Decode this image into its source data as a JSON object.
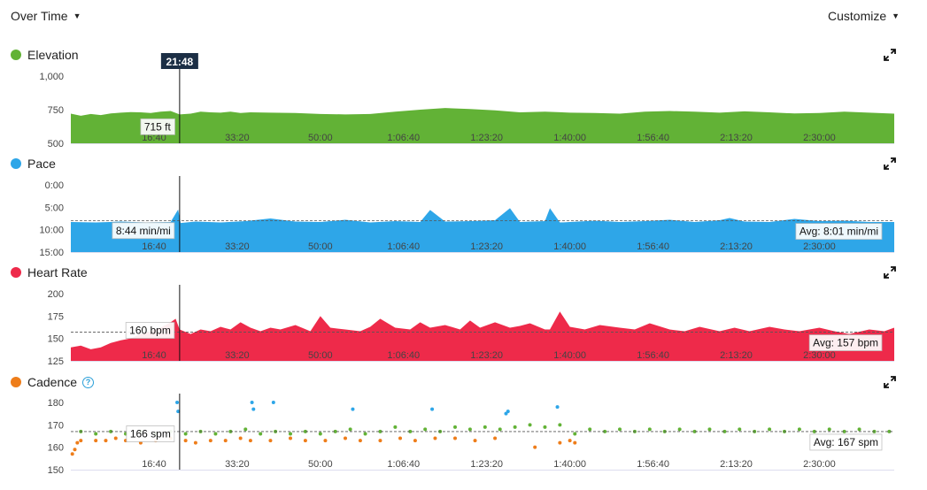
{
  "header": {
    "view_label": "Over Time",
    "customize_label": "Customize"
  },
  "cursor": {
    "time_label": "21:48",
    "time_min": 21.8
  },
  "x_axis": {
    "xlim": [
      0,
      165
    ],
    "ticks": [
      16.67,
      33.33,
      50,
      66.67,
      83.33,
      100,
      116.67,
      133.33,
      150
    ],
    "tick_labels": [
      "16:40",
      "33:20",
      "50:00",
      "1:06:40",
      "1:23:20",
      "1:40:00",
      "1:56:40",
      "2:13:20",
      "2:30:00"
    ]
  },
  "panels": {
    "elevation": {
      "title": "Elevation",
      "dot_color": "#62b236",
      "cursor_label": "715 ft",
      "cursor_value": 715
    },
    "pace": {
      "title": "Pace",
      "dot_color": "#2ea6e8",
      "cursor_label": "8:44 min/mi",
      "avg_label": "Avg: 8:01 min/mi",
      "avg_value": 8.02
    },
    "heart_rate": {
      "title": "Heart Rate",
      "dot_color": "#ee2a4a",
      "cursor_label": "160 bpm",
      "avg_label": "Avg: 157 bpm",
      "avg_value": 157
    },
    "cadence": {
      "title": "Cadence",
      "dot_color": "#ee7d1a",
      "help_glyph": "?",
      "cursor_label": "166 spm",
      "avg_label": "Avg: 167 spm",
      "avg_value": 167
    }
  },
  "chart_data": [
    {
      "type": "area",
      "title": "Elevation",
      "ylabel": "",
      "ylim": [
        500,
        1000
      ],
      "yticks": [
        500,
        750,
        1000
      ],
      "ytick_labels": [
        "500",
        "750",
        "1,000"
      ],
      "color": "#62b236",
      "grid": false,
      "x": [
        0,
        2,
        4,
        6,
        8,
        10,
        12,
        14,
        16,
        18,
        20,
        21.8,
        24,
        26,
        28,
        30,
        32,
        34,
        36,
        40,
        45,
        50,
        55,
        60,
        65,
        70,
        75,
        80,
        85,
        90,
        95,
        100,
        105,
        110,
        115,
        120,
        125,
        130,
        135,
        140,
        145,
        150,
        155,
        160,
        165
      ],
      "y": [
        720,
        705,
        718,
        710,
        722,
        728,
        732,
        730,
        725,
        735,
        740,
        715,
        720,
        735,
        730,
        728,
        735,
        725,
        730,
        728,
        725,
        718,
        715,
        718,
        735,
        750,
        762,
        755,
        745,
        730,
        735,
        728,
        725,
        720,
        735,
        740,
        735,
        728,
        738,
        730,
        722,
        725,
        735,
        728,
        720
      ]
    },
    {
      "type": "area",
      "title": "Pace",
      "ylabel": "",
      "ylim": [
        0,
        15
      ],
      "y_inverted": true,
      "yticks": [
        0,
        5,
        10,
        15
      ],
      "ytick_labels": [
        "0:00",
        "5:00",
        "10:00",
        "15:00"
      ],
      "color": "#2ea6e8",
      "grid": false,
      "avg": 8.02,
      "x": [
        0,
        5,
        10,
        15,
        20,
        21.5,
        22,
        25,
        30,
        35,
        40,
        45,
        50,
        55,
        60,
        65,
        70,
        72,
        75,
        80,
        85,
        88,
        90,
        95,
        96,
        98,
        100,
        105,
        110,
        115,
        120,
        125,
        130,
        132,
        135,
        140,
        145,
        150,
        155,
        160,
        165
      ],
      "y": [
        8.3,
        8.4,
        8.2,
        8.4,
        8.3,
        5.5,
        8.5,
        8.2,
        8.4,
        8.1,
        7.5,
        8.2,
        8.3,
        7.8,
        8.4,
        8.1,
        8.3,
        5.6,
        8.2,
        8.1,
        7.9,
        5.2,
        8.3,
        8.1,
        5.2,
        8.4,
        8.3,
        8.0,
        8.3,
        8.1,
        7.8,
        8.3,
        7.9,
        7.4,
        8.2,
        8.3,
        7.6,
        8.1,
        8.0,
        8.3,
        8.3
      ]
    },
    {
      "type": "area",
      "title": "Heart Rate",
      "ylabel": "",
      "ylim": [
        125,
        200
      ],
      "yticks": [
        125,
        150,
        175,
        200
      ],
      "ytick_labels": [
        "125",
        "150",
        "175",
        "200"
      ],
      "color": "#ee2a4a",
      "grid": false,
      "avg": 157,
      "x": [
        0,
        2,
        4,
        6,
        8,
        10,
        12,
        14,
        16,
        18,
        20,
        21,
        21.8,
        24,
        26,
        28,
        30,
        32,
        34,
        36,
        38,
        40,
        42,
        45,
        48,
        50,
        52,
        55,
        58,
        60,
        62,
        65,
        68,
        70,
        72,
        75,
        78,
        80,
        82,
        85,
        88,
        90,
        92,
        95,
        96,
        98,
        100,
        103,
        106,
        110,
        113,
        116,
        120,
        123,
        126,
        130,
        133,
        136,
        140,
        143,
        146,
        150,
        153,
        156,
        160,
        163,
        165
      ],
      "y": [
        140,
        142,
        138,
        140,
        145,
        148,
        150,
        155,
        158,
        162,
        168,
        172,
        160,
        155,
        160,
        158,
        163,
        160,
        168,
        162,
        158,
        162,
        160,
        165,
        158,
        175,
        162,
        160,
        158,
        163,
        172,
        162,
        160,
        168,
        162,
        165,
        160,
        170,
        162,
        168,
        162,
        164,
        167,
        160,
        160,
        180,
        163,
        160,
        165,
        162,
        160,
        167,
        160,
        158,
        163,
        158,
        162,
        158,
        163,
        160,
        158,
        162,
        158,
        155,
        160,
        158,
        162
      ]
    },
    {
      "type": "scatter",
      "title": "Cadence",
      "ylabel": "",
      "ylim": [
        150,
        180
      ],
      "yticks": [
        150,
        160,
        170,
        180
      ],
      "ytick_labels": [
        "150",
        "160",
        "170",
        "180"
      ],
      "grid": false,
      "avg": 167,
      "series": [
        {
          "name": "",
          "color": "#62b236",
          "x": [
            2,
            5,
            8,
            11,
            14,
            17,
            20,
            23,
            26,
            29,
            32,
            35,
            38,
            41,
            44,
            47,
            50,
            53,
            56,
            59,
            62,
            65,
            68,
            71,
            74,
            77,
            80,
            83,
            86,
            89,
            92,
            95,
            98,
            101,
            104,
            107,
            110,
            113,
            116,
            119,
            122,
            125,
            128,
            131,
            134,
            137,
            140,
            143,
            146,
            149,
            152,
            155,
            158,
            161,
            164
          ],
          "y": [
            167,
            166,
            167,
            166,
            167,
            166,
            167,
            166,
            167,
            166,
            167,
            168,
            166,
            167,
            166,
            167,
            166,
            167,
            168,
            166,
            167,
            169,
            167,
            168,
            167,
            169,
            168,
            169,
            168,
            169,
            170,
            169,
            170,
            166,
            168,
            167,
            168,
            167,
            168,
            167,
            168,
            167,
            168,
            167,
            168,
            167,
            168,
            167,
            168,
            167,
            168,
            167,
            168,
            167,
            167
          ]
        },
        {
          "name": "",
          "color": "#ee7d1a",
          "x": [
            0.3,
            0.8,
            1.3,
            2,
            5,
            7,
            9,
            11,
            14,
            17,
            20,
            23,
            25,
            28,
            31,
            34,
            36,
            40,
            44,
            47,
            51,
            55,
            58,
            62,
            66,
            69,
            73,
            77,
            81,
            85,
            93,
            98,
            100,
            101
          ],
          "y": [
            157,
            159,
            162,
            163,
            163,
            163,
            164,
            163,
            162,
            163,
            164,
            163,
            162,
            163,
            163,
            164,
            163,
            163,
            164,
            163,
            163,
            164,
            163,
            163,
            164,
            163,
            164,
            164,
            163,
            164,
            160,
            162,
            163,
            162
          ]
        },
        {
          "name": "",
          "color": "#2ea6e8",
          "x": [
            21.3,
            21.5,
            36.3,
            36.6,
            40.6,
            56.5,
            72.4,
            87.2,
            87.6,
            97.5
          ],
          "y": [
            180,
            176,
            180,
            177,
            180,
            177,
            177,
            175,
            176,
            178
          ]
        }
      ]
    }
  ]
}
